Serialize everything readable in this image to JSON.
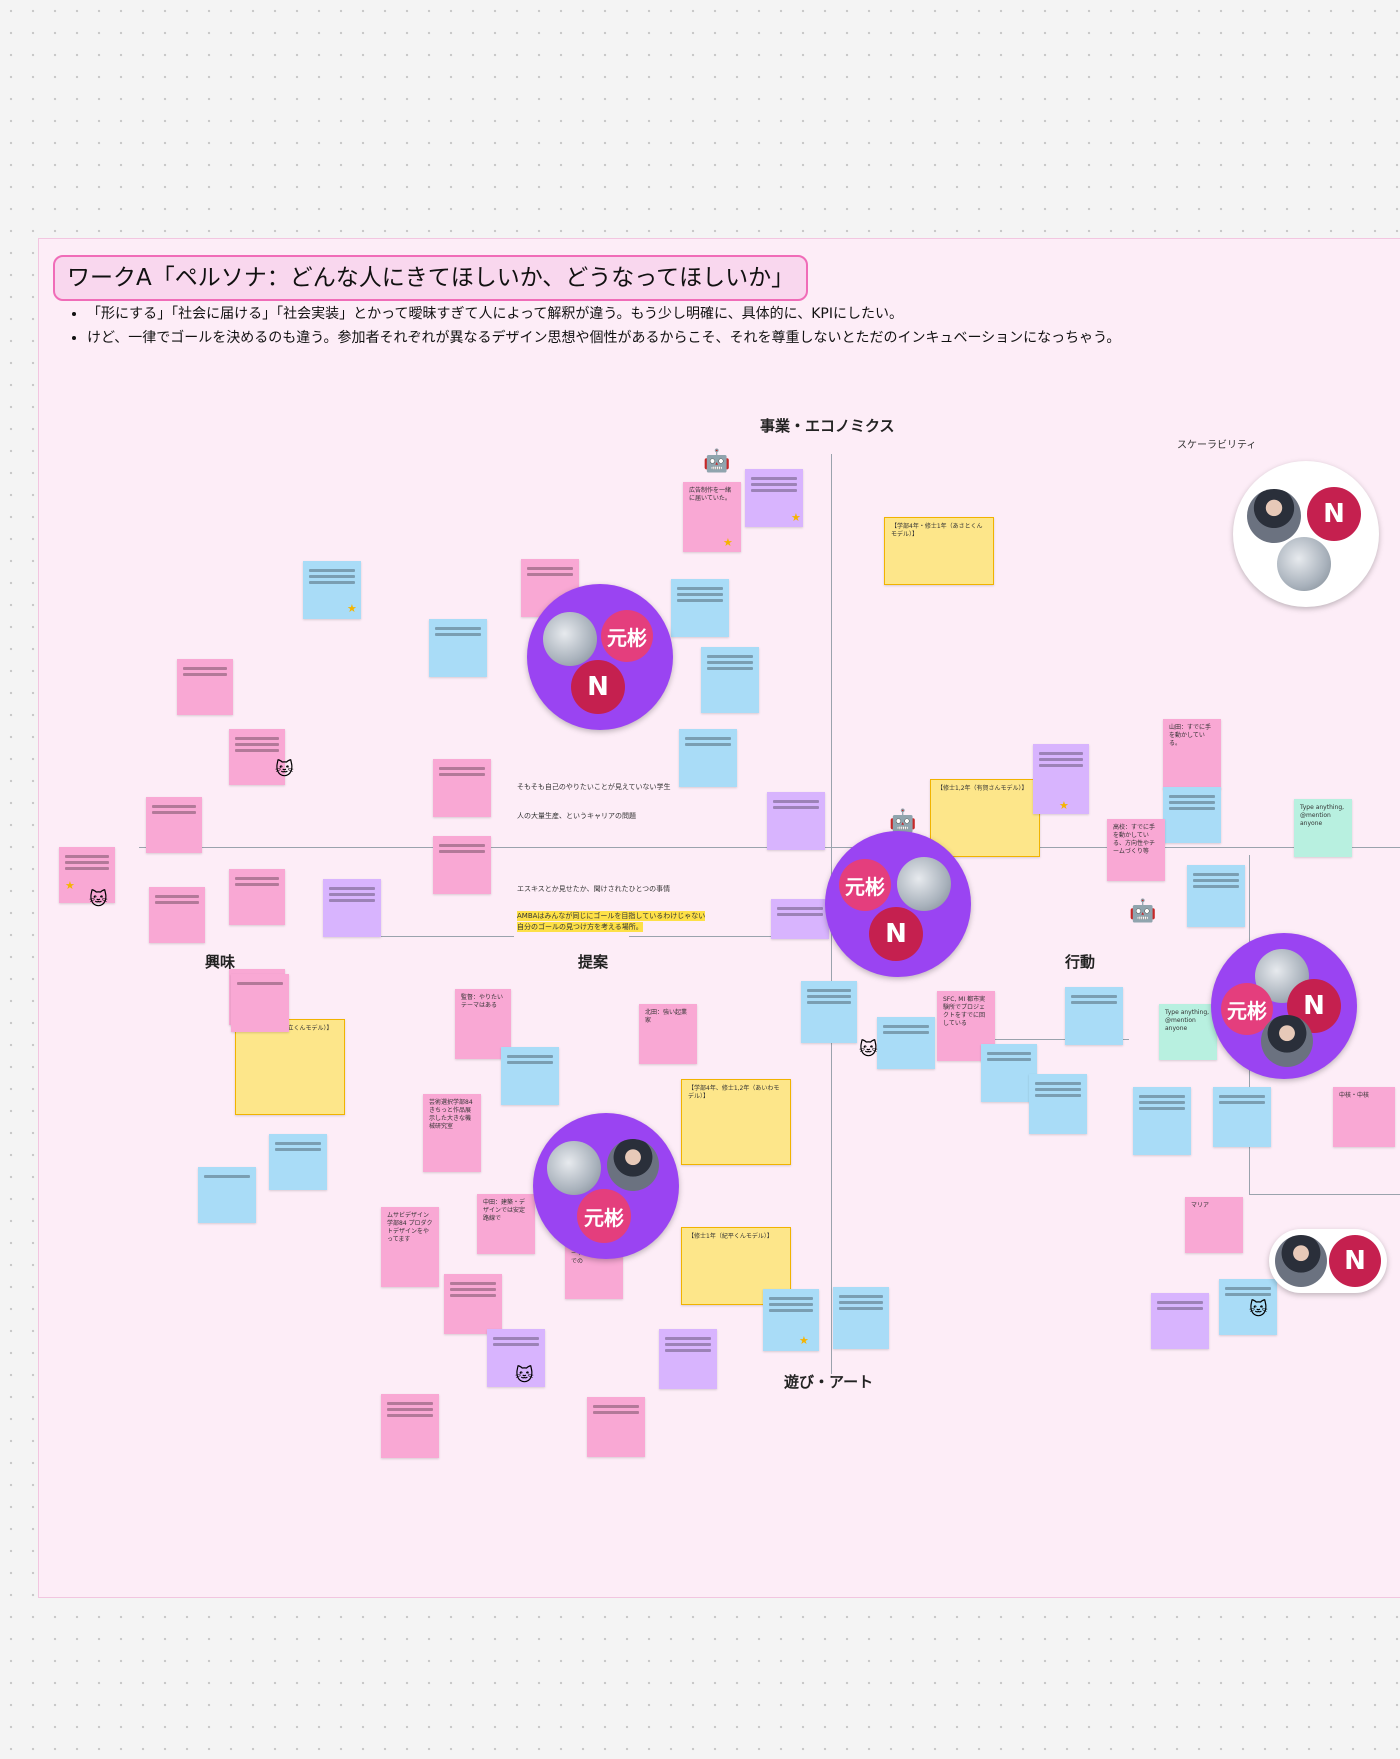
{
  "board": {
    "title": "ワークA「ペルソナ：どんな人にきてほしいか、どうなってほしいか」",
    "bullets": [
      "「形にする」「社会に届ける」「社会実装」とかって曖昧すぎて人によって解釈が違う。もう少し明確に、具体的に、KPIにしたい。",
      "けど、一律でゴールを決めるのも違う。参加者それぞれが異なるデザイン思想や個性があるからこそ、それを尊重しないとただのインキュベーションになっちゃう。"
    ]
  },
  "axes": {
    "top": "事業・エコノミクス",
    "bottom": "遊び・アート",
    "left": "興味",
    "mid": "提案",
    "right": "行動",
    "scalability": "スケーラビリティ"
  },
  "labels": {
    "tag1": "中核・中核",
    "tag2": "マリア"
  },
  "avatars": {
    "kanji": "元彬",
    "n": "N"
  },
  "notes": {
    "n1": "【学部4年・修士1年（あさとくんモデル）】",
    "n2": "【修士1,2年（有賀さんモデル）】",
    "n3": "【学部2,3年（逆立くんモデル）】",
    "n4": "【学部4年、修士1,2年（あいわモデル）】",
    "n5": "【修士1年（紀平くんモデル）】",
    "n6": "山田：すでに手を動かしている。",
    "n7": "広告制作を一緒に届いていた。",
    "n8": "AMBAはみんなが同じにゴールを目指しているわけじゃない",
    "n9": "自分のゴールの見つけ方を考える場所。",
    "n10": "Type anything, @mention anyone",
    "n11": "ムサビデザイン学部84 プロダクトデザインをやってます",
    "n12": "芸術選択学部84 きちっと作品展示した大きな機械研究室",
    "n13": "SFC, MI 都市実験所でプロジェクトをすでに回している",
    "n14": "高校：すでに手を動かしている、方向性やチームづくり等",
    "n15": "そもそも自己のやりたいことが見えていない学生",
    "n16": "人の大量生産、というキャリアの問題",
    "n17": "エスキスとか見せたか、聞けされたひとつの事情",
    "n18": "中田：建築・デザインでは安定路線で",
    "n19": "高崎：ゲーム・ギャラリー・アートの文脈の中での",
    "n20": "北田：強い起業家",
    "n21": "監督：やりたいテーマはある"
  }
}
